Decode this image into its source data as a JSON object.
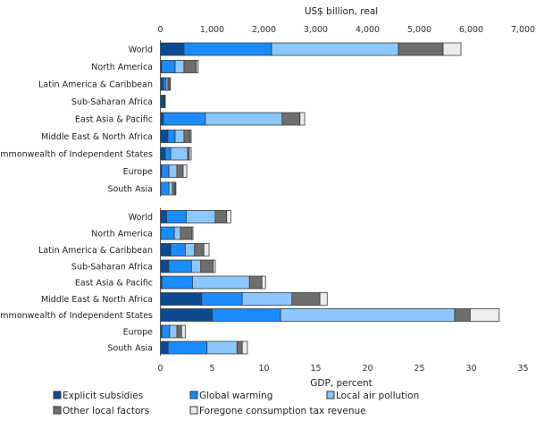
{
  "chart_data": [
    {
      "type": "bar",
      "orientation": "horizontal",
      "stacked": true,
      "title": "",
      "xlabel": "US$ billion, real",
      "ylabel": "",
      "xaxis_position": "top",
      "xlim": [
        0,
        7000
      ],
      "xticks": [
        0,
        1000,
        2000,
        3000,
        4000,
        5000,
        6000,
        7000
      ],
      "xtick_labels": [
        "0",
        "1,000",
        "2,000",
        "3,000",
        "4,000",
        "5,000",
        "6,000",
        "7,000"
      ],
      "grid": false,
      "categories": [
        "World",
        "North America",
        "Latin America & Caribbean",
        "Sub-Saharan Africa",
        "East Asia & Pacific",
        "Middle East & North Africa",
        "Commonwealth of Independent States",
        "Europe",
        "South Asia"
      ],
      "series": [
        {
          "name": "Explicit subsidies",
          "values": [
            457,
            25,
            60,
            75,
            60,
            145,
            95,
            25,
            10
          ]
        },
        {
          "name": "Global warming",
          "values": [
            1690,
            260,
            50,
            10,
            810,
            140,
            105,
            140,
            155
          ]
        },
        {
          "name": "Local air pollution",
          "values": [
            2448,
            170,
            35,
            5,
            1480,
            170,
            325,
            155,
            70
          ]
        },
        {
          "name": "Other local factors",
          "values": [
            862,
            240,
            35,
            5,
            345,
            120,
            35,
            120,
            50
          ]
        },
        {
          "name": "Foregone consumption tax revenue",
          "values": [
            345,
            35,
            15,
            0,
            90,
            20,
            35,
            70,
            15
          ]
        }
      ]
    },
    {
      "type": "bar",
      "orientation": "horizontal",
      "stacked": true,
      "title": "",
      "xlabel": "GDP, percent",
      "ylabel": "",
      "xaxis_position": "bottom",
      "xlim": [
        0,
        35
      ],
      "xticks": [
        0,
        5,
        10,
        15,
        20,
        25,
        30,
        35
      ],
      "xtick_labels": [
        "0",
        "5",
        "10",
        "15",
        "20",
        "25",
        "30",
        "35"
      ],
      "grid": false,
      "categories": [
        "World",
        "North America",
        "Latin America & Caribbean",
        "Sub-Saharan Africa",
        "East Asia & Pacific",
        "Middle East & North Africa",
        "Commonwealth of Independent States",
        "Europe",
        "South Asia"
      ],
      "series": [
        {
          "name": "Explicit subsidies",
          "values": [
            0.6,
            0.05,
            1.0,
            0.8,
            0.15,
            4.0,
            5.0,
            0.15,
            0.75
          ]
        },
        {
          "name": "Global warming",
          "values": [
            1.9,
            1.3,
            1.4,
            2.2,
            2.95,
            3.9,
            6.6,
            0.75,
            3.75
          ]
        },
        {
          "name": "Local air pollution",
          "values": [
            2.8,
            0.6,
            0.9,
            0.9,
            5.5,
            4.8,
            16.8,
            0.7,
            2.9
          ]
        },
        {
          "name": "Other local factors",
          "values": [
            1.1,
            1.1,
            0.9,
            1.2,
            1.2,
            2.7,
            1.5,
            0.45,
            0.5
          ]
        },
        {
          "name": "Foregone consumption tax revenue",
          "values": [
            0.4,
            0.1,
            0.5,
            0.2,
            0.35,
            0.7,
            2.8,
            0.35,
            0.5
          ]
        }
      ]
    }
  ],
  "legend": {
    "placement": "bottom",
    "items": [
      {
        "label": "Explicit subsidies",
        "color": "#0b4a8f"
      },
      {
        "label": "Global warming",
        "color": "#1a8cff"
      },
      {
        "label": "Local air pollution",
        "color": "#8cc8ff"
      },
      {
        "label": "Other local factors",
        "color": "#6e6e6e"
      },
      {
        "label": "Foregone consumption tax revenue",
        "color": "#ededed"
      }
    ]
  }
}
